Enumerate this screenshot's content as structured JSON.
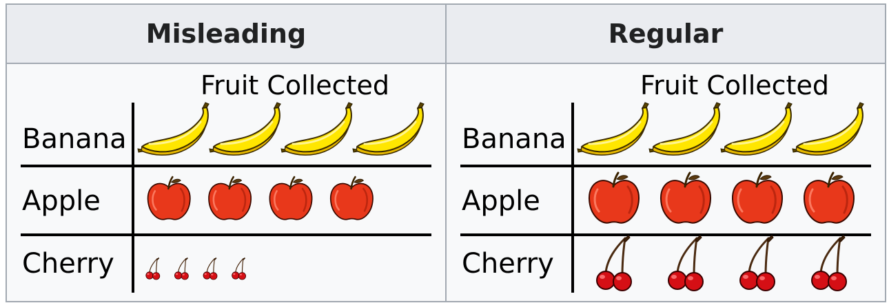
{
  "table": {
    "headers": [
      "Misleading",
      "Regular"
    ]
  },
  "chart_data": [
    {
      "type": "pictogram",
      "title": "Fruit Collected",
      "categories": [
        "Banana",
        "Apple",
        "Cherry"
      ],
      "values": [
        4,
        4,
        4
      ],
      "icons": [
        "banana-icon",
        "apple-icon",
        "cherry-icon"
      ],
      "icon_scale": [
        1.0,
        0.85,
        0.4
      ],
      "variant": "misleading",
      "colors": {
        "banana": "#ffe600",
        "apple": "#e8381b",
        "cherry": "#d50f15"
      }
    },
    {
      "type": "pictogram",
      "title": "Fruit Collected",
      "categories": [
        "Banana",
        "Apple",
        "Cherry"
      ],
      "values": [
        4,
        4,
        4
      ],
      "icons": [
        "banana-icon",
        "apple-icon",
        "cherry-icon"
      ],
      "icon_scale": [
        1.0,
        1.0,
        1.0
      ],
      "variant": "regular",
      "colors": {
        "banana": "#ffe600",
        "apple": "#e8381b",
        "cherry": "#d50f15"
      }
    }
  ]
}
